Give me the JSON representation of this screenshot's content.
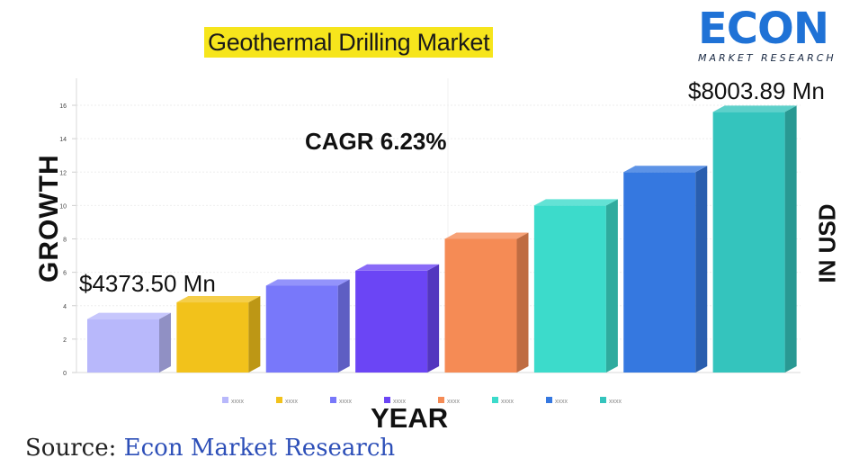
{
  "header": {
    "title": "Geothermal Drilling Market",
    "logo_main": "ECON",
    "logo_sub": "MARKET RESEARCH"
  },
  "annotations": {
    "cagr": "CAGR 6.23%",
    "first_value": "$4373.50 Mn",
    "last_value": "$8003.89 Mn",
    "right_label": "IN USD"
  },
  "footer": {
    "source_label": "Source:",
    "source_name": "Econ Market Research"
  },
  "chart_data": {
    "type": "bar",
    "title": "Geothermal Drilling Market",
    "xlabel": "YEAR",
    "ylabel": "GROWTH",
    "ylim": [
      0,
      16
    ],
    "yticks": [
      0,
      2,
      4,
      6,
      8,
      10,
      12,
      14,
      16
    ],
    "grid": true,
    "legend_position": "bottom",
    "categories": [
      "xxxx",
      "xxxx",
      "xxxx",
      "xxxx",
      "xxxx",
      "xxxx",
      "xxxx",
      "xxxx"
    ],
    "values": [
      3.2,
      4.2,
      5.2,
      6.1,
      8.0,
      10.0,
      12.0,
      15.6
    ],
    "colors": [
      "#b8b8fb",
      "#f2c21b",
      "#7878fa",
      "#6b45f5",
      "#f58b55",
      "#3cdbcb",
      "#3578e0",
      "#34c4bd"
    ]
  }
}
